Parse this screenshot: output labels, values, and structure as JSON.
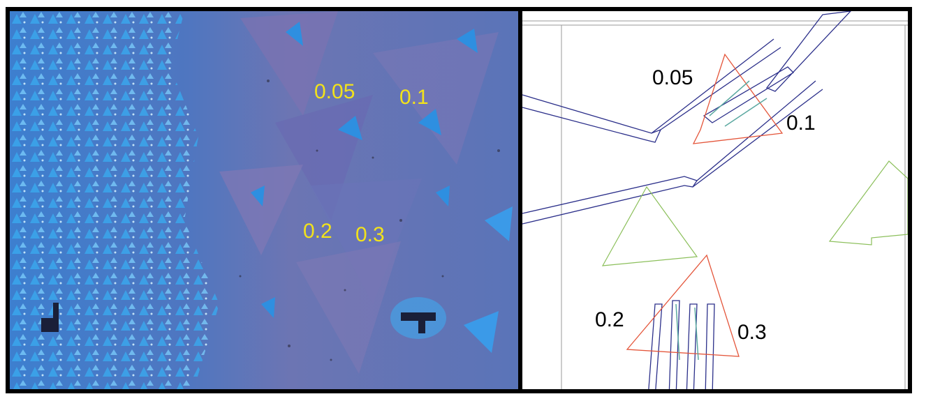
{
  "figure": {
    "left_panel": {
      "kind": "optical micrograph of triangular flakes on substrate",
      "labels": [
        "0.05",
        "0.1",
        "0.2",
        "0.3"
      ]
    },
    "right_panel": {
      "kind": "device layout overlay",
      "labels": [
        "0.05",
        "0.1",
        "0.2",
        "0.3"
      ]
    },
    "colors": {
      "micrograph_background": "#5a6fb0",
      "micrograph_flake": "#2f8fd8",
      "label_yellow": "#f2e21b",
      "layout_blue": "#2b2f8a",
      "flake_outline_red": "#e4553a",
      "flake_outline_green": "#8bbf5a"
    }
  }
}
